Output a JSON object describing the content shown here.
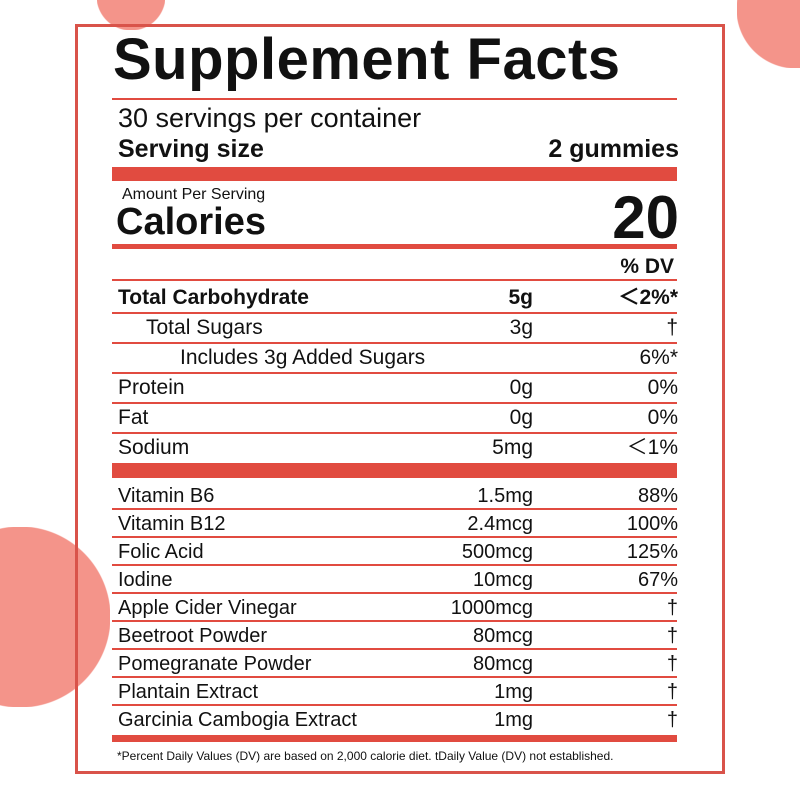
{
  "title": "Supplement Facts",
  "servings_per_container": "30 servings per container",
  "serving_size_label": "Serving size",
  "serving_size_value": "2 gummies",
  "amount_per_serving": "Amount Per Serving",
  "calories_label": "Calories",
  "calories_value": "20",
  "dv_header": "% DV",
  "nutrients": [
    {
      "name": "Total Carbohydrate",
      "amount": "5g",
      "dv": "＜2%*",
      "bold": true,
      "indent": 0
    },
    {
      "name": "Total Sugars",
      "amount": "3g",
      "dv": "†",
      "indent": 1
    },
    {
      "name": "Includes 3g Added Sugars",
      "amount": "",
      "dv": "6%*",
      "indent": 2
    },
    {
      "name": "Protein",
      "amount": "0g",
      "dv": "0%",
      "indent": 0
    },
    {
      "name": "Fat",
      "amount": "0g",
      "dv": "0%",
      "indent": 0
    },
    {
      "name": "Sodium",
      "amount": "5mg",
      "dv": "＜1%",
      "indent": 0
    }
  ],
  "ingredients": [
    {
      "name": "Vitamin B6",
      "amount": "1.5mg",
      "dv": "88%"
    },
    {
      "name": "Vitamin B12",
      "amount": "2.4mcg",
      "dv": "100%"
    },
    {
      "name": "Folic Acid",
      "amount": "500mcg",
      "dv": "125%"
    },
    {
      "name": "Iodine",
      "amount": "10mcg",
      "dv": "67%"
    },
    {
      "name": "Apple Cider Vinegar",
      "amount": "1000mcg",
      "dv": "†"
    },
    {
      "name": "Beetroot Powder",
      "amount": "80mcg",
      "dv": "†"
    },
    {
      "name": "Pomegranate Powder",
      "amount": "80mcg",
      "dv": "†"
    },
    {
      "name": "Plantain Extract",
      "amount": "1mg",
      "dv": "†"
    },
    {
      "name": "Garcinia Cambogia Extract",
      "amount": "1mg",
      "dv": "†"
    }
  ],
  "footnote": "*Percent Daily Values (DV) are based on 2,000 calorie diet. tDaily Value (DV) not established.",
  "colors": {
    "accent": "#e14b40",
    "border": "#d9534a",
    "circle": "#f4948a"
  }
}
